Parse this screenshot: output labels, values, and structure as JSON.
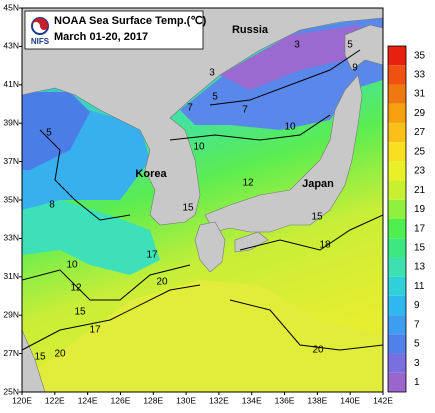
{
  "title": {
    "heading": "NOAA Sea Surface Temp.(℃)",
    "period": "March 01-20, 2017",
    "logo": "NIFS"
  },
  "places": [
    "Russia",
    "Korea",
    "Japan"
  ],
  "contour_labels": [
    "3",
    "3",
    "5",
    "5",
    "7",
    "7",
    "9",
    "10",
    "10",
    "12",
    "5",
    "8",
    "10",
    "12",
    "15",
    "17",
    "15",
    "20",
    "17",
    "15",
    "20",
    "20",
    "15",
    "18"
  ],
  "lon_ticks": [
    "120E",
    "122E",
    "124E",
    "126E",
    "128E",
    "130E",
    "132E",
    "134E",
    "136E",
    "138E",
    "140E",
    "142E"
  ],
  "lat_ticks": [
    "45N",
    "43N",
    "41N",
    "39N",
    "37N",
    "35N",
    "33N",
    "31N",
    "29N",
    "27N",
    "25N"
  ],
  "colorbar": {
    "labels": [
      1,
      3,
      5,
      7,
      9,
      11,
      13,
      15,
      17,
      19,
      21,
      23,
      25,
      27,
      29,
      31,
      33,
      35
    ],
    "colors": [
      "#9a66cc",
      "#7a6fe0",
      "#5080ea",
      "#3d9ef0",
      "#2fb8f0",
      "#2fd0d8",
      "#3de0b0",
      "#3de880",
      "#50ef50",
      "#90f040",
      "#c8f030",
      "#e8f028",
      "#f8e020",
      "#f8c018",
      "#f8a010",
      "#f07810",
      "#f05010",
      "#e82010"
    ]
  }
}
